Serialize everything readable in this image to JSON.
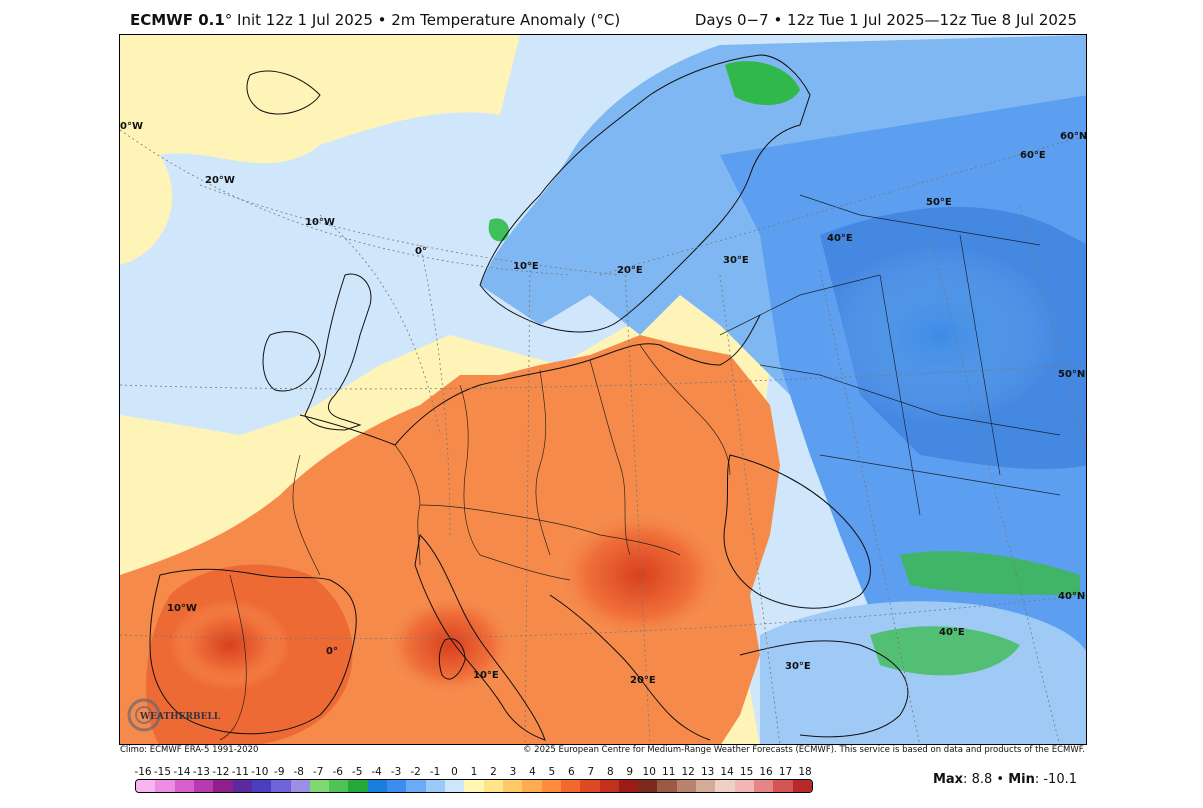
{
  "header": {
    "model": "ECMWF 0.1",
    "degree": "°",
    "title_rest": " Init 12z 1 Jul 2025 • 2m Temperature Anomaly (°C)",
    "valid": "Days 0−7 • 12z Tue 1 Jul 2025—12z Tue 8 Jul 2025"
  },
  "gridlines": {
    "west": [
      "0°W",
      "20°W",
      "10°W",
      "0°",
      "10°W",
      "0°"
    ],
    "east": [
      "10°E",
      "20°E",
      "30°E",
      "40°E",
      "50°E",
      "60°E",
      "10°E",
      "20°E",
      "30°E",
      "40°E"
    ],
    "lat": [
      "60°N",
      "50°N",
      "40°N"
    ]
  },
  "logo": "WEATHERBELL",
  "footer": {
    "climo": "Climo: ECMWF ERA-5 1991-2020",
    "copyright": "© 2025 European Centre for Medium-Range Weather Forecasts (ECMWF). This service is based on data and products of the ECMWF."
  },
  "colorbar": {
    "labels": [
      "-16",
      "-15",
      "-14",
      "-13",
      "-12",
      "-11",
      "-10",
      "-9",
      "-8",
      "-7",
      "-6",
      "-5",
      "-4",
      "-3",
      "-2",
      "-1",
      "0",
      "1",
      "2",
      "3",
      "4",
      "5",
      "6",
      "7",
      "8",
      "9",
      "10",
      "11",
      "12",
      "13",
      "14",
      "15",
      "16",
      "17",
      "18"
    ],
    "colors": [
      "#f7b6f0",
      "#ec8fe2",
      "#d95fcf",
      "#b83ab0",
      "#8f1f8d",
      "#5b2a9e",
      "#4b3fbf",
      "#6f63d9",
      "#9b8fe6",
      "#7fd870",
      "#4fc454",
      "#24a83a",
      "#1a7fdc",
      "#3b8ef0",
      "#6aabf5",
      "#9ccaf8",
      "#cde6fb",
      "#fff7b2",
      "#ffe48a",
      "#ffc96a",
      "#ffab52",
      "#ff8c3f",
      "#f36a2e",
      "#de4b23",
      "#c2311c",
      "#9d1c15",
      "#7a2b1c",
      "#9c5a44",
      "#b8846f",
      "#d4ab98",
      "#eed1c4",
      "#f2b7b4",
      "#e58585",
      "#d45555",
      "#b82a2a"
    ]
  },
  "stats": {
    "max_label": "Max",
    "max_value": "8.8",
    "min_label": "Min",
    "min_value": "-10.1"
  }
}
